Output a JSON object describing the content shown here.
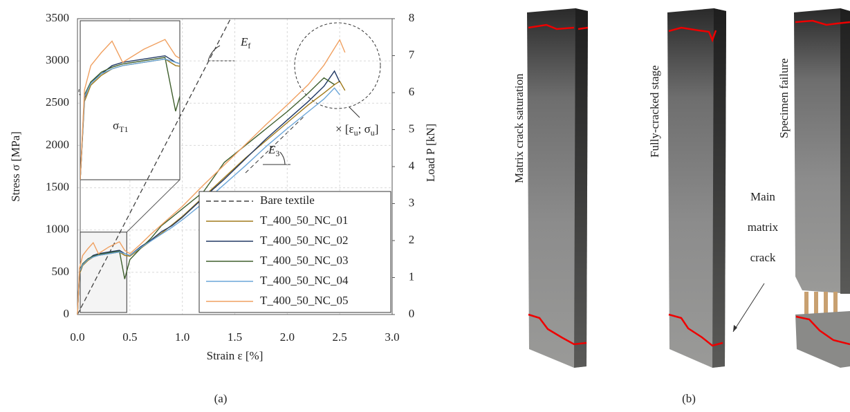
{
  "chart_data": {
    "type": "line",
    "xlabel": "Strain ε [%]",
    "ylabel": "Stress σ [MPa]",
    "y2label": "Load P [kN]",
    "xlim": [
      0,
      3
    ],
    "xticks": [
      {
        "value": 0,
        "label": "0.0"
      },
      0.5,
      {
        "value": 1,
        "label": "1.0"
      },
      1.5,
      {
        "value": 2,
        "label": "2.0"
      },
      2.5,
      {
        "value": 3,
        "label": "3.0"
      }
    ],
    "ylim": [
      0,
      3500
    ],
    "yticks": [
      0,
      500,
      1000,
      1500,
      2000,
      2500,
      3000,
      3500
    ],
    "y2lim": [
      0,
      8
    ],
    "y2ticks": [
      0,
      1,
      2,
      3,
      4,
      5,
      6,
      7,
      8
    ],
    "grid": true,
    "x": [
      0,
      0.02,
      0.05,
      0.1,
      0.15,
      0.2,
      0.3,
      0.4,
      0.45,
      0.5,
      0.6,
      0.7,
      0.8,
      0.9,
      1.0,
      1.2,
      1.4,
      1.6,
      1.8,
      2.0,
      2.2,
      2.35,
      2.45,
      2.5,
      2.55
    ],
    "series": [
      {
        "name": "Bare textile",
        "color": "#404040",
        "dash": true,
        "x": [
          0,
          1.46
        ],
        "values": [
          0,
          3500
        ]
      },
      {
        "name": "T_400_50_NC_01",
        "color": "#a07a1a",
        "values": [
          0,
          480,
          580,
          640,
          680,
          700,
          720,
          740,
          700,
          690,
          780,
          870,
          960,
          1060,
          1160,
          1390,
          1620,
          1850,
          2060,
          2270,
          2480,
          2620,
          2720,
          2760,
          2650
        ]
      },
      {
        "name": "T_400_50_NC_02",
        "color": "#203864",
        "values": [
          0,
          500,
          600,
          650,
          700,
          720,
          740,
          760,
          720,
          700,
          800,
          880,
          980,
          1050,
          1150,
          1380,
          1600,
          1840,
          2080,
          2300,
          2520,
          2700,
          2880,
          2750,
          null
        ]
      },
      {
        "name": "T_400_50_NC_03",
        "color": "#3e5e2c",
        "values": [
          0,
          520,
          600,
          660,
          690,
          710,
          730,
          750,
          420,
          650,
          780,
          900,
          1050,
          1150,
          1250,
          1450,
          1800,
          2000,
          2200,
          2400,
          2620,
          2800,
          2720,
          null,
          null
        ]
      },
      {
        "name": "T_400_50_NC_04",
        "color": "#6aa5d8",
        "values": [
          0,
          510,
          590,
          650,
          680,
          700,
          720,
          740,
          720,
          700,
          790,
          870,
          950,
          1030,
          1120,
          1320,
          1540,
          1760,
          1990,
          2200,
          2400,
          2550,
          2680,
          2600,
          null
        ]
      },
      {
        "name": "T_400_50_NC_05",
        "color": "#f0a060",
        "values": [
          0,
          550,
          700,
          780,
          850,
          720,
          800,
          860,
          760,
          720,
          830,
          950,
          1060,
          1170,
          1280,
          1530,
          1770,
          2010,
          2250,
          2480,
          2720,
          2950,
          3150,
          3250,
          3100
        ]
      }
    ],
    "inset": {
      "xlim": [
        0,
        0.47
      ],
      "ylim": [
        0,
        975
      ]
    },
    "annotations": [
      [
        "E",
        "f"
      ],
      [
        "E",
        "3"
      ],
      [
        "σ",
        "T1"
      ],
      [
        "× [ε",
        "u",
        "; σ",
        "u",
        "]"
      ]
    ],
    "caption": "(a)"
  },
  "photos": {
    "labels": [
      "Matrix crack saturation",
      "Fully-cracked stage",
      "Specimen failure"
    ],
    "callout": [
      "Main",
      "matrix",
      "crack"
    ],
    "caption": "(b)"
  }
}
